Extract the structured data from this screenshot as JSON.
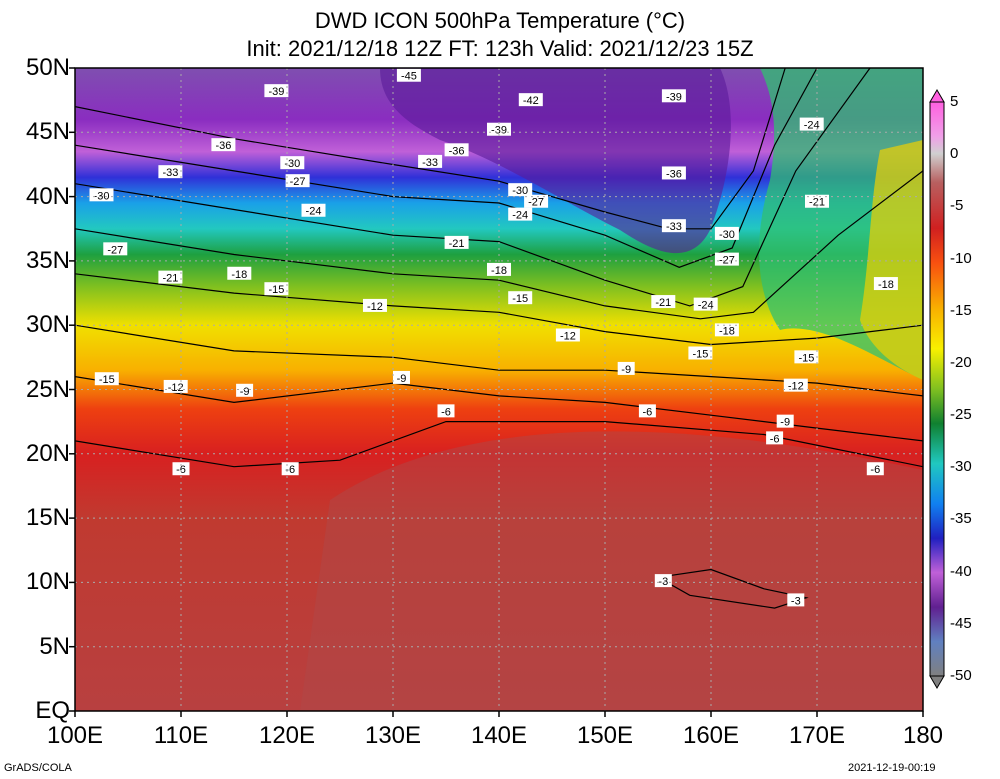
{
  "title_line1": "DWD ICON 500hPa Temperature (°C)",
  "title_line2": "Init: 2021/12/18 12Z  FT: 123h  Valid: 2021/12/23 15Z",
  "lat_labels": [
    "50N",
    "45N",
    "40N",
    "35N",
    "30N",
    "25N",
    "20N",
    "15N",
    "10N",
    "5N",
    "EQ"
  ],
  "lon_labels": [
    "100E",
    "110E",
    "120E",
    "130E",
    "140E",
    "150E",
    "160E",
    "170E",
    "180"
  ],
  "colorbar_labels": [
    "5",
    "0",
    "-5",
    "-10",
    "-15",
    "-20",
    "-25",
    "-30",
    "-35",
    "-40",
    "-45",
    "-50"
  ],
  "footer_left": "GrADS/COLA",
  "footer_right": "2021-12-19-00:19",
  "contour_labels": [
    {
      "t": "-45",
      "lon": 131.5,
      "lat": 49.4
    },
    {
      "t": "-39",
      "lon": 119,
      "lat": 48.2
    },
    {
      "t": "-42",
      "lon": 143,
      "lat": 47.5
    },
    {
      "t": "-39",
      "lon": 156.5,
      "lat": 47.8
    },
    {
      "t": "-24",
      "lon": 169.5,
      "lat": 45.6
    },
    {
      "t": "-36",
      "lon": 114,
      "lat": 44
    },
    {
      "t": "-39",
      "lon": 140,
      "lat": 45.2
    },
    {
      "t": "-36",
      "lon": 136,
      "lat": 43.6
    },
    {
      "t": "-33",
      "lon": 133.5,
      "lat": 42.7
    },
    {
      "t": "-33",
      "lon": 109,
      "lat": 41.9
    },
    {
      "t": "-30",
      "lon": 120.5,
      "lat": 42.6
    },
    {
      "t": "-36",
      "lon": 156.5,
      "lat": 41.8
    },
    {
      "t": "-27",
      "lon": 121,
      "lat": 41.2
    },
    {
      "t": "-30",
      "lon": 102.5,
      "lat": 40.1
    },
    {
      "t": "-30",
      "lon": 142,
      "lat": 40.5
    },
    {
      "t": "-27",
      "lon": 143.5,
      "lat": 39.6
    },
    {
      "t": "-21",
      "lon": 170,
      "lat": 39.6
    },
    {
      "t": "-24",
      "lon": 122.5,
      "lat": 38.9
    },
    {
      "t": "-24",
      "lon": 142,
      "lat": 38.6
    },
    {
      "t": "-33",
      "lon": 156.5,
      "lat": 37.7
    },
    {
      "t": "-30",
      "lon": 161.5,
      "lat": 37.1
    },
    {
      "t": "-27",
      "lon": 103.8,
      "lat": 35.9
    },
    {
      "t": "-21",
      "lon": 136,
      "lat": 36.4
    },
    {
      "t": "-27",
      "lon": 161.5,
      "lat": 35.1
    },
    {
      "t": "-18",
      "lon": 140,
      "lat": 34.3
    },
    {
      "t": "-21",
      "lon": 109,
      "lat": 33.7
    },
    {
      "t": "-18",
      "lon": 115.5,
      "lat": 34
    },
    {
      "t": "-18",
      "lon": 176.5,
      "lat": 33.2
    },
    {
      "t": "-15",
      "lon": 119,
      "lat": 32.8
    },
    {
      "t": "-15",
      "lon": 142,
      "lat": 32.1
    },
    {
      "t": "-21",
      "lon": 155.5,
      "lat": 31.8
    },
    {
      "t": "-24",
      "lon": 159.5,
      "lat": 31.6
    },
    {
      "t": "-12",
      "lon": 128.3,
      "lat": 31.5
    },
    {
      "t": "-18",
      "lon": 161.5,
      "lat": 29.6
    },
    {
      "t": "-12",
      "lon": 146.5,
      "lat": 29.2
    },
    {
      "t": "-15",
      "lon": 159,
      "lat": 27.8
    },
    {
      "t": "-15",
      "lon": 169,
      "lat": 27.5
    },
    {
      "t": "-15",
      "lon": 103,
      "lat": 25.8
    },
    {
      "t": "-9",
      "lon": 130.8,
      "lat": 25.9
    },
    {
      "t": "-9",
      "lon": 152,
      "lat": 26.6
    },
    {
      "t": "-12",
      "lon": 109.5,
      "lat": 25.2
    },
    {
      "t": "-9",
      "lon": 116,
      "lat": 24.9
    },
    {
      "t": "-12",
      "lon": 168,
      "lat": 25.3
    },
    {
      "t": "-6",
      "lon": 135,
      "lat": 23.3
    },
    {
      "t": "-6",
      "lon": 154,
      "lat": 23.3
    },
    {
      "t": "-9",
      "lon": 167,
      "lat": 22.5
    },
    {
      "t": "-6",
      "lon": 166,
      "lat": 21.2
    },
    {
      "t": "-6",
      "lon": 110,
      "lat": 18.8
    },
    {
      "t": "-6",
      "lon": 120.3,
      "lat": 18.8
    },
    {
      "t": "-6",
      "lon": 175.5,
      "lat": 18.8
    },
    {
      "t": "-3",
      "lon": 155.5,
      "lat": 10.1
    },
    {
      "t": "-3",
      "lon": 168,
      "lat": 8.6
    }
  ]
}
